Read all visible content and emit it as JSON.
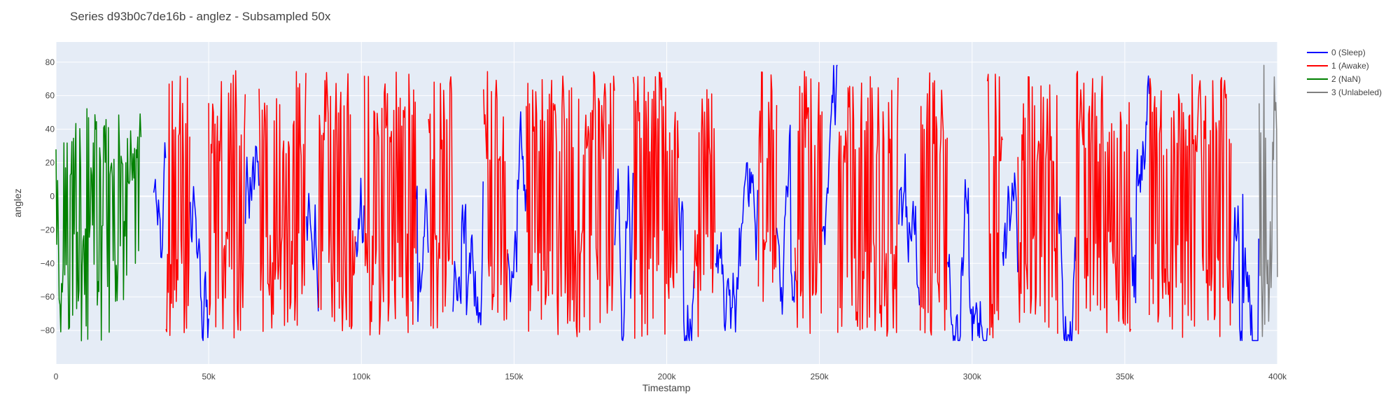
{
  "chart_data": {
    "type": "line",
    "title": "Series d93b0c7de16b - anglez - Subsampled 50x",
    "xlabel": "Timestamp",
    "ylabel": "anglez",
    "xlim": [
      0,
      400000
    ],
    "ylim": [
      -100,
      92
    ],
    "x_ticks": [
      {
        "value": 0,
        "label": "0"
      },
      {
        "value": 50000,
        "label": "50k"
      },
      {
        "value": 100000,
        "label": "100k"
      },
      {
        "value": 150000,
        "label": "150k"
      },
      {
        "value": 200000,
        "label": "200k"
      },
      {
        "value": 250000,
        "label": "250k"
      },
      {
        "value": 300000,
        "label": "300k"
      },
      {
        "value": 350000,
        "label": "350k"
      },
      {
        "value": 400000,
        "label": "400k"
      }
    ],
    "y_ticks": [
      {
        "value": 80,
        "label": "80"
      },
      {
        "value": 60,
        "label": "60"
      },
      {
        "value": 40,
        "label": "40"
      },
      {
        "value": 20,
        "label": "20"
      },
      {
        "value": 0,
        "label": "0"
      },
      {
        "value": -20,
        "label": "−20"
      },
      {
        "value": -40,
        "label": "−40"
      },
      {
        "value": -60,
        "label": "−60"
      },
      {
        "value": -80,
        "label": "−80"
      }
    ],
    "grid": true,
    "legend_position": "top-right",
    "plot_background": "#e5ecf6",
    "series": [
      {
        "name": "0 (Sleep)",
        "color": "#0000ff",
        "mode": "sleep",
        "segments": [
          [
            32000,
            36000
          ],
          [
            44000,
            50000
          ],
          [
            62000,
            66500
          ],
          [
            82000,
            86000
          ],
          [
            98000,
            101000
          ],
          [
            118000,
            122000
          ],
          [
            130000,
            140000
          ],
          [
            148000,
            154000
          ],
          [
            183000,
            189000
          ],
          [
            204000,
            209000
          ],
          [
            216000,
            230000
          ],
          [
            236000,
            242000
          ],
          [
            251000,
            256000
          ],
          [
            276000,
            283000
          ],
          [
            292000,
            305000
          ],
          [
            310000,
            315000
          ],
          [
            328000,
            334000
          ],
          [
            352000,
            358000
          ],
          [
            385000,
            394000
          ]
        ]
      },
      {
        "name": "1 (Awake)",
        "color": "#ff0000",
        "mode": "awake",
        "segments": [
          [
            36000,
            44000
          ],
          [
            50000,
            62000
          ],
          [
            66500,
            82000
          ],
          [
            86000,
            98000
          ],
          [
            101000,
            118000
          ],
          [
            122000,
            130000
          ],
          [
            140000,
            148000
          ],
          [
            154000,
            183000
          ],
          [
            189000,
            204000
          ],
          [
            209000,
            216000
          ],
          [
            230000,
            236000
          ],
          [
            242000,
            251000
          ],
          [
            256000,
            276000
          ],
          [
            283000,
            292000
          ],
          [
            305000,
            310000
          ],
          [
            315000,
            328000
          ],
          [
            334000,
            352000
          ],
          [
            358000,
            385000
          ]
        ]
      },
      {
        "name": "2 (NaN)",
        "color": "#008000",
        "mode": "nan",
        "segments": [
          [
            0,
            28000
          ]
        ]
      },
      {
        "name": "3 (Unlabeled)",
        "color": "#808080",
        "mode": "unlabeled",
        "segments": [
          [
            394000,
            400000
          ]
        ]
      }
    ]
  }
}
